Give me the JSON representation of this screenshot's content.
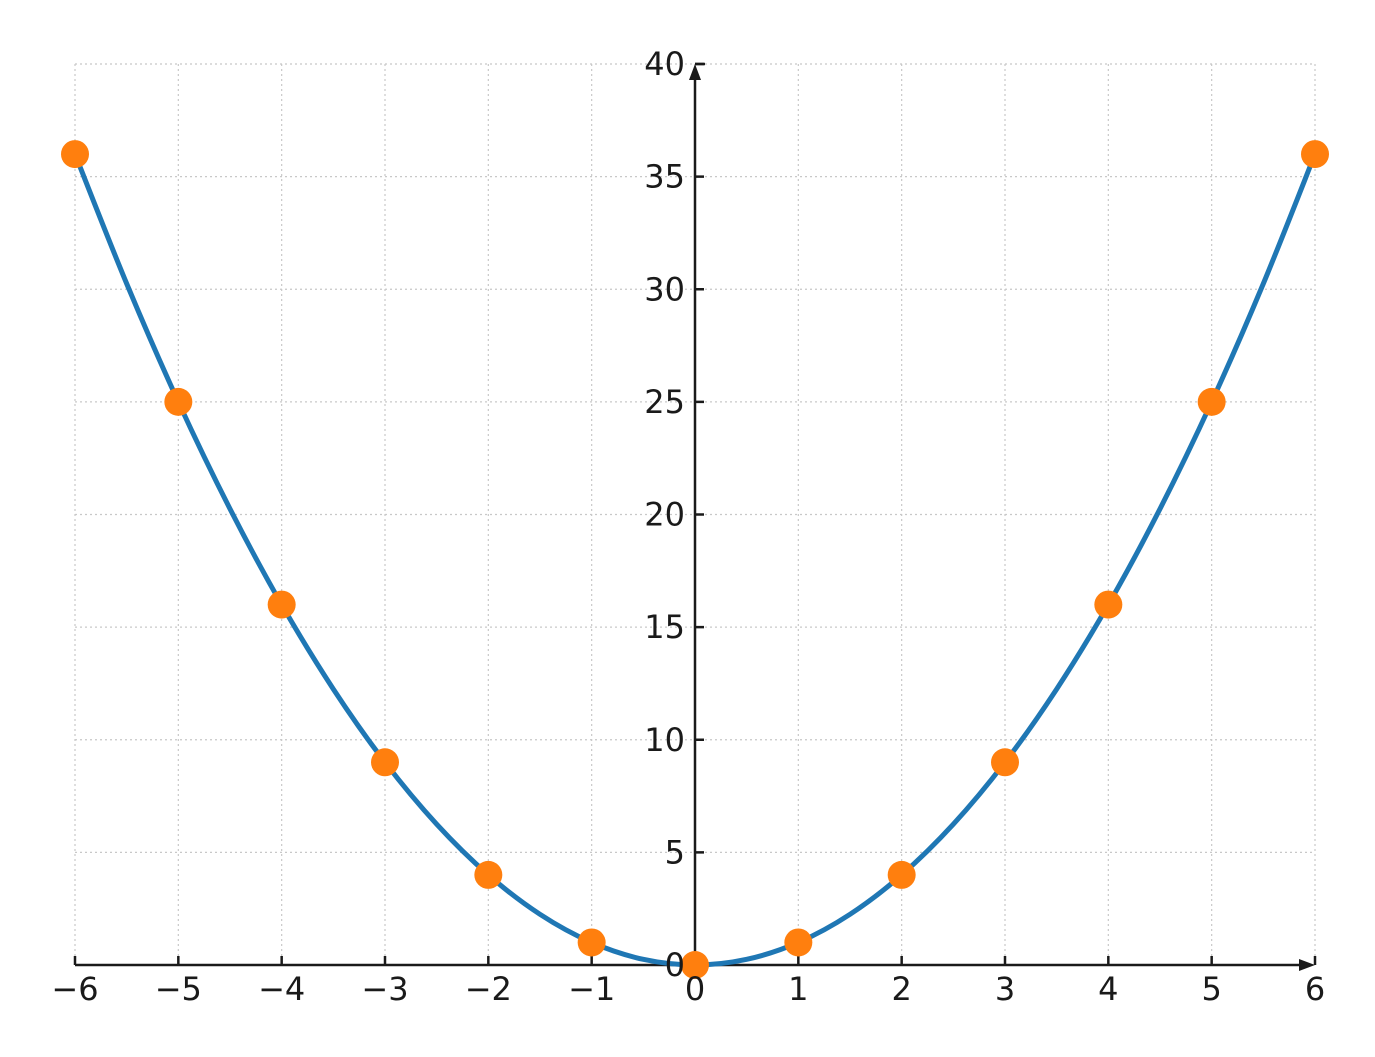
{
  "chart_data": {
    "type": "line",
    "title": "",
    "xlabel": "",
    "ylabel": "",
    "xlim": [
      -6,
      6
    ],
    "ylim": [
      0,
      40
    ],
    "grid": true,
    "x_ticks": [
      "−6",
      "−5",
      "−4",
      "−3",
      "−2",
      "−1",
      "0",
      "1",
      "2",
      "3",
      "4",
      "5",
      "6"
    ],
    "y_ticks": [
      "0",
      "5",
      "10",
      "15",
      "20",
      "25",
      "30",
      "35",
      "40"
    ],
    "series": [
      {
        "kind": "curve",
        "color": "#1f77b4",
        "x": [
          -6,
          -5.5,
          -5,
          -4.5,
          -4,
          -3.5,
          -3,
          -2.5,
          -2,
          -1.5,
          -1,
          -0.5,
          0,
          0.5,
          1,
          1.5,
          2,
          2.5,
          3,
          3.5,
          4,
          4.5,
          5,
          5.5,
          6
        ],
        "y": [
          36,
          30.25,
          25,
          20.25,
          16,
          12.25,
          9,
          6.25,
          4,
          2.25,
          1,
          0.25,
          0,
          0.25,
          1,
          2.25,
          4,
          6.25,
          9,
          12.25,
          16,
          20.25,
          25,
          30.25,
          36
        ]
      },
      {
        "kind": "points",
        "color": "#ff7f0e",
        "x": [
          -6,
          -5,
          -4,
          -3,
          -2,
          -1,
          0,
          1,
          2,
          3,
          4,
          5,
          6
        ],
        "y": [
          36,
          25,
          16,
          9,
          4,
          1,
          0,
          1,
          4,
          9,
          16,
          25,
          36
        ]
      }
    ]
  }
}
